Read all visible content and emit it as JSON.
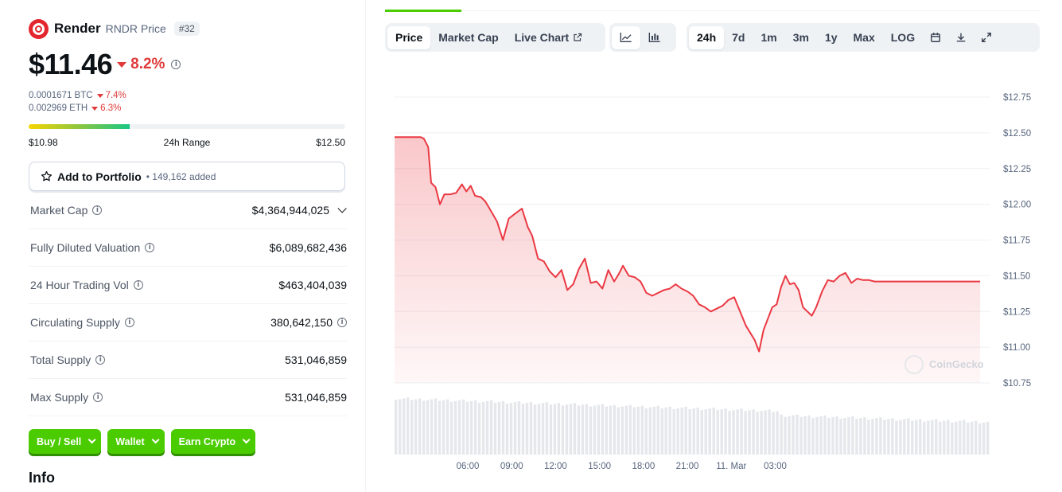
{
  "coin": {
    "name": "Render",
    "symbol_label": "RNDR Price",
    "rank": "#32",
    "price": "$11.46",
    "change_24h": "8.2%",
    "btc_price": "0.0001671 BTC",
    "btc_change": "7.4%",
    "eth_price": "0.002969 ETH",
    "eth_change": "6.3%"
  },
  "range_24h": {
    "low": "$10.98",
    "label": "24h Range",
    "high": "$12.50",
    "fill_fraction": 0.32
  },
  "portfolio": {
    "label": "Add to Portfolio",
    "count": "• 149,162 added"
  },
  "stats": [
    {
      "label": "Market Cap",
      "value": "$4,364,944,025"
    },
    {
      "label": "Fully Diluted Valuation",
      "value": "$6,089,682,436"
    },
    {
      "label": "24 Hour Trading Vol",
      "value": "$463,404,039"
    },
    {
      "label": "Circulating Supply",
      "value": "380,642,150"
    },
    {
      "label": "Total Supply",
      "value": "531,046,859"
    },
    {
      "label": "Max Supply",
      "value": "531,046,859"
    }
  ],
  "actions": {
    "buy_sell": "Buy / Sell",
    "wallet": "Wallet",
    "earn": "Earn Crypto"
  },
  "info_heading": "Info",
  "chart_tabs": {
    "price": "Price",
    "market_cap": "Market Cap",
    "live_chart": "Live Chart"
  },
  "time_ranges": {
    "h24": "24h",
    "d7": "7d",
    "m1": "1m",
    "m3": "3m",
    "y1": "1y",
    "max": "Max",
    "log": "LOG"
  },
  "watermark": "CoinGecko",
  "colors": {
    "down": "#e03a3a",
    "up": "#4bcc00",
    "line": "#ea3943"
  },
  "chart_data": {
    "type": "area",
    "xlabel": "",
    "ylabel": "",
    "y_ticks": [
      "$12.75",
      "$12.50",
      "$12.25",
      "$12.00",
      "$11.75",
      "$11.50",
      "$11.25",
      "$11.00",
      "$10.75"
    ],
    "x_ticks": [
      "06:00",
      "09:00",
      "12:00",
      "15:00",
      "18:00",
      "21:00",
      "11. Mar",
      "03:00"
    ],
    "ylim": [
      10.75,
      12.75
    ],
    "x_hours": [
      1.8,
      2.0,
      2.3,
      2.5,
      2.8,
      3.1,
      3.4,
      3.8,
      4.2,
      4.6,
      4.9,
      5.2,
      5.5,
      5.9,
      6.2,
      6.6,
      7.0,
      7.4,
      7.8,
      8.3,
      8.7,
      9.1,
      9.4,
      9.8,
      10.2,
      10.6,
      11.0,
      11.4,
      11.8,
      12.2,
      12.6,
      13.0,
      13.4,
      13.8,
      14.2,
      14.6,
      15.0,
      15.3,
      15.6,
      16.0,
      16.4,
      16.8,
      17.2,
      17.6,
      18.0,
      18.4,
      18.8,
      19.2,
      19.6,
      20.0,
      20.4,
      20.8,
      21.2,
      21.6,
      22.0,
      22.4,
      22.8,
      23.2,
      23.6,
      24.0,
      24.3,
      24.6,
      24.9,
      25.2,
      25.5,
      25.8,
      26.1,
      26.4,
      26.7,
      27.0,
      27.3,
      27.6,
      27.9,
      28.2,
      28.5,
      28.8,
      29.2,
      29.6,
      30.0,
      30.4,
      30.8,
      31.2,
      31.6,
      32.0,
      32.4,
      32.8,
      33.2,
      33.6,
      34.0,
      34.4,
      34.8,
      35.2,
      35.6,
      36.0,
      36.4,
      36.8,
      37.2,
      37.6,
      38.0,
      38.4,
      38.8,
      39.2,
      39.6,
      40.0
    ],
    "prices": [
      12.47,
      12.46,
      12.4,
      12.15,
      12.12,
      12.0,
      12.07,
      12.07,
      12.08,
      12.14,
      12.09,
      12.13,
      12.06,
      12.05,
      12.02,
      11.95,
      11.88,
      11.75,
      11.9,
      11.94,
      11.97,
      11.84,
      11.78,
      11.62,
      11.6,
      11.53,
      11.49,
      11.54,
      11.4,
      11.44,
      11.55,
      11.62,
      11.45,
      11.46,
      11.41,
      11.54,
      11.46,
      11.51,
      11.57,
      11.5,
      11.49,
      11.46,
      11.38,
      11.36,
      11.38,
      11.4,
      11.41,
      11.44,
      11.41,
      11.39,
      11.36,
      11.3,
      11.28,
      11.25,
      11.27,
      11.29,
      11.33,
      11.35,
      11.25,
      11.15,
      11.1,
      11.05,
      10.97,
      11.12,
      11.2,
      11.28,
      11.3,
      11.42,
      11.5,
      11.44,
      11.45,
      11.4,
      11.28,
      11.25,
      11.22,
      11.28,
      11.39,
      11.47,
      11.46,
      11.5,
      11.52,
      11.45,
      11.48,
      11.47,
      11.47,
      11.46,
      11.46,
      11.46,
      11.46,
      11.46,
      11.46,
      11.46,
      11.46,
      11.46,
      11.46,
      11.46,
      11.46,
      11.46,
      11.46,
      11.46,
      11.46,
      11.46,
      11.46,
      11.46
    ]
  }
}
